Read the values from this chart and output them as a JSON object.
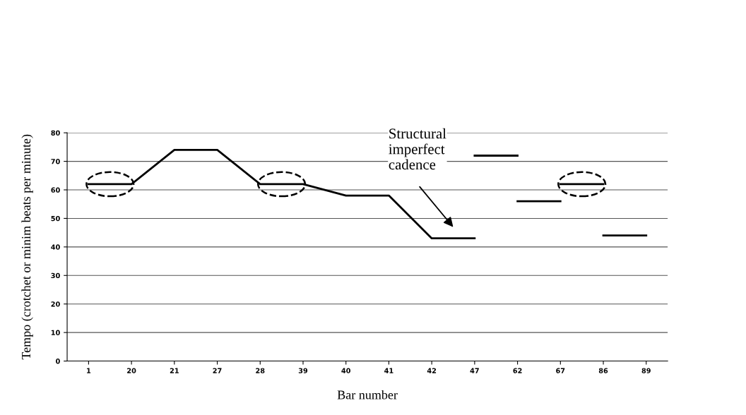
{
  "chart_data": {
    "type": "line",
    "xlabel": "Bar number",
    "ylabel": "Tempo (crotchet or minim beats per minute)",
    "categories": [
      "1",
      "20",
      "21",
      "27",
      "28",
      "39",
      "40",
      "41",
      "42",
      "47",
      "62",
      "67",
      "86",
      "89"
    ],
    "series": [
      {
        "color": "#000000",
        "values": [
          62,
          62,
          74,
          74,
          62,
          62,
          58,
          58,
          43,
          43,
          null,
          null,
          null,
          null
        ]
      },
      {
        "color": "#000000",
        "values": [
          null,
          null,
          null,
          null,
          null,
          null,
          null,
          null,
          null,
          72,
          72,
          null,
          null,
          null
        ]
      },
      {
        "color": "#000000",
        "values": [
          null,
          null,
          null,
          null,
          null,
          null,
          null,
          null,
          null,
          null,
          56,
          56,
          null,
          null
        ]
      },
      {
        "color": "#000000",
        "values": [
          null,
          null,
          null,
          null,
          null,
          null,
          null,
          null,
          null,
          null,
          null,
          62,
          62,
          null
        ]
      },
      {
        "color": "#000000",
        "values": [
          null,
          null,
          null,
          null,
          null,
          null,
          null,
          null,
          null,
          null,
          null,
          null,
          44,
          44
        ]
      }
    ],
    "ylim": [
      0,
      80
    ],
    "yticks": [
      0,
      10,
      20,
      30,
      40,
      50,
      60,
      70,
      80
    ],
    "grid": "y",
    "legend": false,
    "marker": "none",
    "line_style": "solid",
    "annotations": [
      "Structural\nimperfect\ncadence"
    ]
  }
}
